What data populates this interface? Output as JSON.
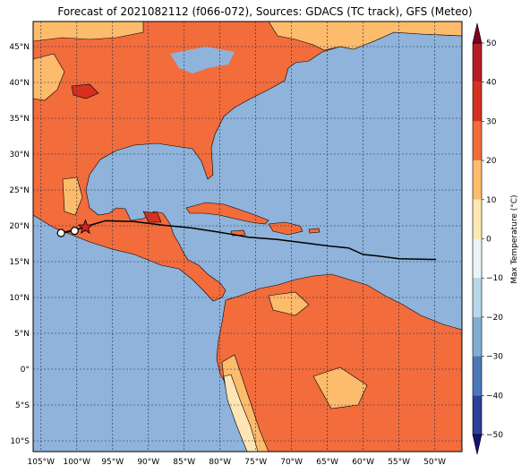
{
  "title": "Forecast of 2021082112 (f066-072), Sources: GDACS (TC track), GFS (Meteo)",
  "colorbar": {
    "label": "Max Temperature (°C)",
    "ticks": [
      "50",
      "40",
      "30",
      "20",
      "10",
      "0",
      "−10",
      "−20",
      "−30",
      "−40",
      "−50"
    ],
    "colors": [
      "#7f0020",
      "#b71c24",
      "#d7301f",
      "#f26b3a",
      "#fdbb6c",
      "#fee8b0",
      "#e8f4f8",
      "#b7d7ea",
      "#80aed3",
      "#4b78b8",
      "#2c3f99",
      "#16136e"
    ]
  },
  "axes": {
    "lat_labels": [
      "45°N",
      "40°N",
      "35°N",
      "30°N",
      "25°N",
      "20°N",
      "15°N",
      "10°N",
      "5°N",
      "0°",
      "5°S",
      "10°S"
    ],
    "lon_labels": [
      "105°W",
      "100°W",
      "95°W",
      "90°W",
      "85°W",
      "80°W",
      "75°W",
      "70°W",
      "65°W",
      "60°W",
      "55°W",
      "50°W"
    ]
  },
  "map_colors": {
    "ocean": "#8fb3da",
    "land_hot": "#f26c3c",
    "land_warm": "#fdbb6c",
    "land_pale": "#fee5b4",
    "land_red": "#d7301f",
    "grid": "#1f2f4f",
    "track": "#000000",
    "storm_marker": "#d81f27"
  },
  "track": {
    "lon": [
      -49.8,
      -55,
      -58,
      -60,
      -62,
      -65,
      -68,
      -72,
      -76,
      -80,
      -84,
      -88,
      -92,
      -96,
      -98.4
    ],
    "lat": [
      15.3,
      15.4,
      15.8,
      16.0,
      16.9,
      17.2,
      17.6,
      18.1,
      18.4,
      19.1,
      19.7,
      20.1,
      20.6,
      20.7,
      20.0
    ],
    "storm_lon": -98.8,
    "storm_lat": 19.8,
    "points": [
      {
        "lon": -100.3,
        "lat": 19.3
      },
      {
        "lon": -102.2,
        "lat": 19.0
      }
    ]
  }
}
